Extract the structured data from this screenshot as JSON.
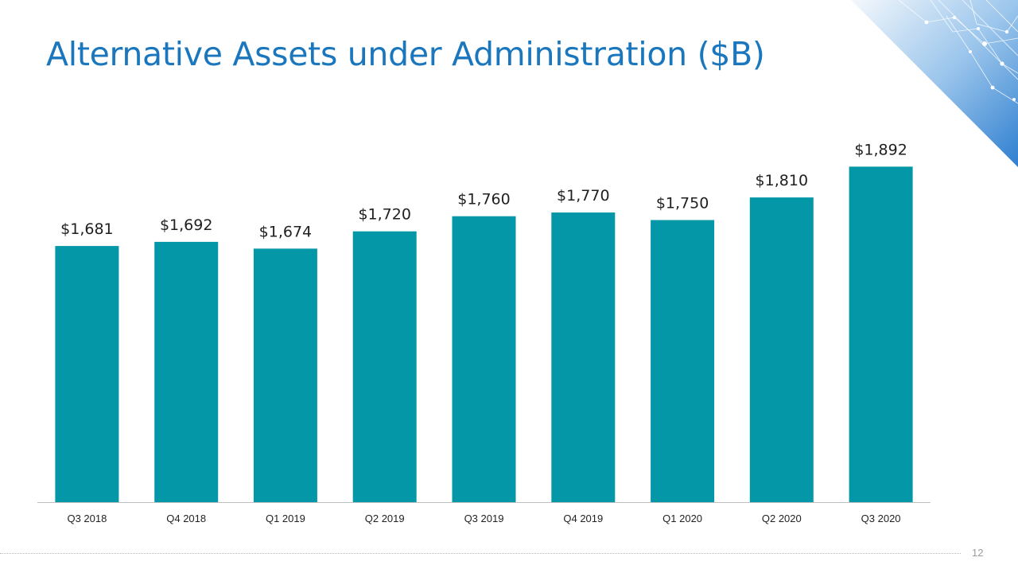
{
  "slide": {
    "title": "Alternative Assets under Administration ($B)",
    "page_number": "12"
  },
  "colors": {
    "title": "#1a76bd",
    "bar": "#0497a7",
    "axis": "#bfbfbf",
    "corner_accent": "#2f7fd0"
  },
  "icons": {
    "corner_graphic": "network-circuit-graphic"
  },
  "chart_data": {
    "type": "bar",
    "title": "Alternative Assets under Administration ($B)",
    "xlabel": "",
    "ylabel": "",
    "grid": false,
    "legend": "none",
    "ylim": [
      0,
      2000
    ],
    "categories": [
      "Q3 2018",
      "Q4 2018",
      "Q1 2019",
      "Q2 2019",
      "Q3 2019",
      "Q4 2019",
      "Q1 2020",
      "Q2 2020",
      "Q3 2020"
    ],
    "values": [
      1681,
      1692,
      1674,
      1720,
      1760,
      1770,
      1750,
      1810,
      1892
    ],
    "value_labels": [
      "$1,681",
      "$1,692",
      "$1,674",
      "$1,720",
      "$1,760",
      "$1,770",
      "$1,750",
      "$1,810",
      "$1,892"
    ]
  }
}
